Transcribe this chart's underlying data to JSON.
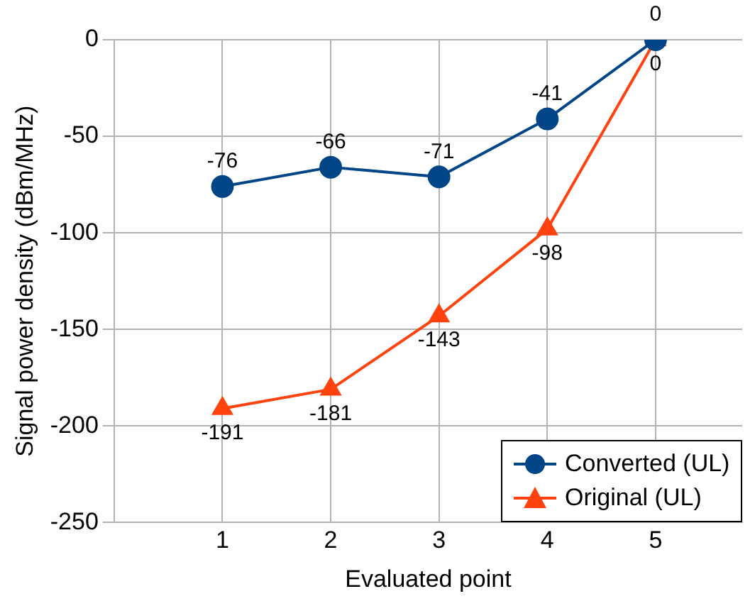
{
  "chart_data": {
    "type": "line",
    "xlabel": "Evaluated point",
    "ylabel": "Signal power density (dBm/MHz)",
    "x": [
      1,
      2,
      3,
      4,
      5
    ],
    "xlim": [
      0,
      5.8
    ],
    "xticks": [
      1,
      2,
      3,
      4,
      5
    ],
    "ylim": [
      -250,
      0
    ],
    "yticks": [
      -250,
      -200,
      -150,
      -100,
      -50,
      0
    ],
    "grid": true,
    "legend": "bottom right",
    "data_labels": true,
    "series": [
      {
        "name": "Converted (UL)",
        "color": "#004586",
        "marker": "circle",
        "values": [
          -76,
          -66,
          -71,
          -41,
          0
        ]
      },
      {
        "name": "Original (UL)",
        "color": "#ff420e",
        "marker": "triangle",
        "values": [
          -191,
          -181,
          -143,
          -98,
          0
        ]
      }
    ]
  }
}
